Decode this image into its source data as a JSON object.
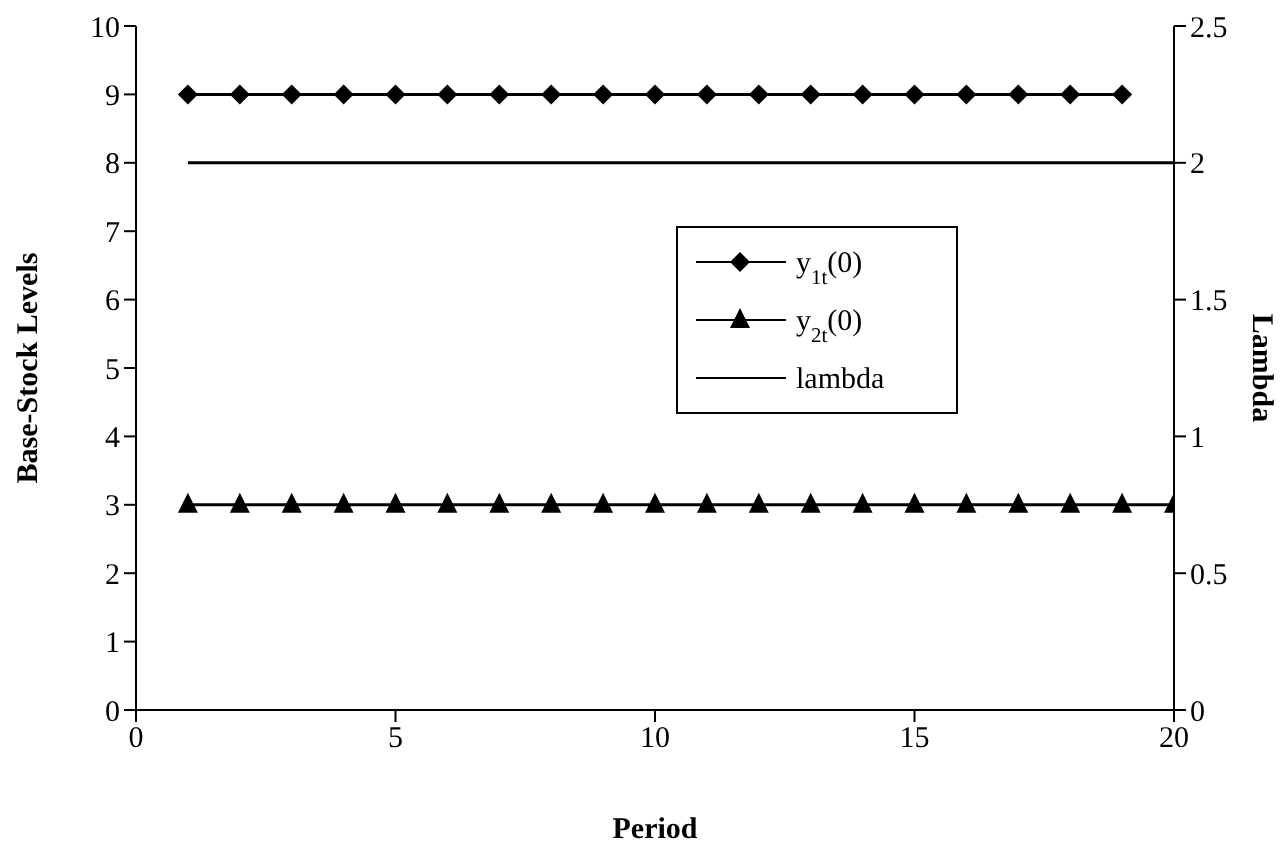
{
  "chart_data": {
    "type": "line",
    "xlabel": "Period",
    "ylabel": "Base-Stock Levels",
    "y2label": "Lambda",
    "xlim": [
      0,
      20
    ],
    "xticks": [
      0,
      5,
      10,
      15,
      20
    ],
    "ylim": [
      0,
      10
    ],
    "yticks": [
      0,
      1,
      2,
      3,
      4,
      5,
      6,
      7,
      8,
      9,
      10
    ],
    "y2lim": [
      0,
      2.5
    ],
    "y2ticks": [
      0,
      0.5,
      1,
      1.5,
      2,
      2.5
    ],
    "legend": "right",
    "line_style": "solid",
    "series": [
      {
        "name": "y$_{1t}$(0)",
        "color": "#000000",
        "marker": "diamond",
        "x": [
          1,
          2,
          3,
          4,
          5,
          6,
          7,
          8,
          9,
          10,
          11,
          12,
          13,
          14,
          15,
          16,
          17,
          18,
          19
        ],
        "values": [
          9,
          9,
          9,
          9,
          9,
          9,
          9,
          9,
          9,
          9,
          9,
          9,
          9,
          9,
          9,
          9,
          9,
          9,
          9
        ]
      },
      {
        "name": "y$_{2t}$(0)",
        "color": "#000000",
        "marker": "triangle",
        "x": [
          1,
          2,
          3,
          4,
          5,
          6,
          7,
          8,
          9,
          10,
          11,
          12,
          13,
          14,
          15,
          16,
          17,
          18,
          19,
          20
        ],
        "values": [
          3,
          3,
          3,
          3,
          3,
          3,
          3,
          3,
          3,
          3,
          3,
          3,
          3,
          3,
          3,
          3,
          3,
          3,
          3,
          3
        ]
      },
      {
        "name": "lambda",
        "color": "#000000",
        "marker": "none",
        "axis": "y2",
        "x": [
          1,
          20
        ],
        "values": [
          2,
          2
        ]
      }
    ]
  }
}
